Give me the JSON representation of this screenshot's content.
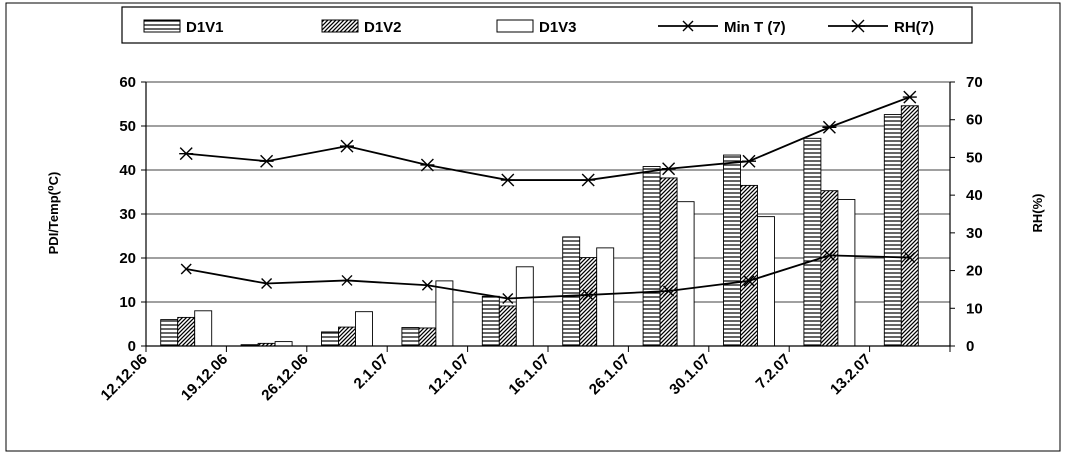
{
  "chart_data": {
    "type": "bar",
    "categories": [
      "12.12.06",
      "19.12.06",
      "26.12.06",
      "2.1.07",
      "12.1.07",
      "16.1.07",
      "26.1.07",
      "30.1.07",
      "7.2.07",
      "13.2.07"
    ],
    "series": [
      {
        "name": "D1V1",
        "chart": "bar",
        "axis": "left",
        "values": [
          6,
          0.3,
          3.2,
          4.2,
          11.3,
          24.8,
          40.8,
          43.4,
          47.2,
          52.6
        ],
        "pattern": "horizontal-stripes",
        "color": "#000000"
      },
      {
        "name": "D1V2",
        "chart": "bar",
        "axis": "left",
        "values": [
          6.5,
          0.6,
          4.3,
          4.1,
          9.1,
          20.1,
          38.2,
          36.5,
          35.3,
          54.6
        ],
        "pattern": "diagonal-hatch",
        "color": "#000000"
      },
      {
        "name": "D1V3",
        "chart": "bar",
        "axis": "left",
        "values": [
          8,
          1,
          7.8,
          14.8,
          18,
          22.3,
          32.8,
          29.4,
          33.3,
          null
        ],
        "pattern": "none",
        "color": "#000000"
      },
      {
        "name": "Min T (7)",
        "chart": "line",
        "axis": "left",
        "marker": "x",
        "values": [
          17.5,
          14.2,
          14.9,
          13.8,
          10.8,
          11.6,
          12.5,
          14.8,
          20.6,
          20.1
        ],
        "color": "#000000"
      },
      {
        "name": "RH(7)",
        "chart": "line",
        "axis": "right",
        "marker": "asterisk",
        "values": [
          51,
          49,
          53,
          48,
          44,
          44,
          47,
          49,
          58,
          66
        ],
        "color": "#000000"
      }
    ],
    "y_left": {
      "label": "PDI/Temp(⁰C)",
      "ylim": [
        0,
        60
      ],
      "ticks": [
        "0",
        "10",
        "20",
        "30",
        "40",
        "50",
        "60"
      ]
    },
    "y_right": {
      "label": "RH(%)",
      "ylim": [
        0,
        70
      ],
      "ticks": [
        "0",
        "10",
        "20",
        "30",
        "40",
        "50",
        "60",
        "70"
      ]
    },
    "grid": "horizontal",
    "legend": "top"
  }
}
